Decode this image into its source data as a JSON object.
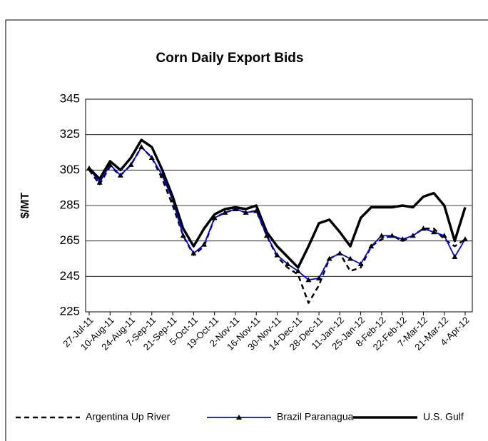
{
  "chart_data": {
    "type": "line",
    "title": "Corn Daily Export Bids",
    "y_label": "$/MT",
    "categories": [
      "27-Jul-11",
      null,
      "10-Aug-11",
      null,
      "24-Aug-11",
      null,
      "7-Sep-11",
      null,
      "21-Sep-11",
      null,
      "5-Oct-11",
      null,
      "19-Oct-11",
      null,
      "2-Nov-11",
      null,
      "16-Nov-11",
      null,
      "30-Nov-11",
      null,
      "14-Dec-11",
      null,
      "28-Dec-11",
      null,
      "11-Jan-12",
      null,
      "25-Jan-12",
      null,
      "8-Feb-12",
      null,
      "22-Feb-12",
      null,
      "7-Mar-12",
      null,
      "21-Mar-12",
      null,
      "4-Apr-12"
    ],
    "series": [
      {
        "name": "Argentina Up River",
        "color": "#000000",
        "line_style": "dashed",
        "values": [
          305,
          297,
          307,
          302,
          308,
          318,
          312,
          300,
          285,
          268,
          257,
          262,
          278,
          281,
          283,
          281,
          282,
          268,
          256,
          250,
          246,
          230,
          240,
          255,
          258,
          248,
          250,
          262,
          266,
          268,
          265,
          268,
          272,
          272,
          266,
          262,
          266
        ]
      },
      {
        "name": "Brazil Paranagua",
        "color": "#0000ff",
        "line_style": "solid",
        "marker": "triangle",
        "values": [
          306,
          298,
          308,
          302,
          308,
          318,
          312,
          302,
          288,
          268,
          258,
          263,
          278,
          281,
          283,
          281,
          282,
          268,
          257,
          252,
          248,
          243,
          244,
          255,
          258,
          255,
          252,
          262,
          268,
          268,
          266,
          268,
          272,
          270,
          268,
          256,
          266
        ]
      },
      {
        "name": "U.S. Gulf",
        "color": "#000000",
        "line_style": "thick",
        "values": [
          306,
          300,
          310,
          305,
          312,
          322,
          318,
          305,
          290,
          272,
          262,
          272,
          280,
          283,
          284,
          283,
          285,
          270,
          262,
          256,
          250,
          262,
          275,
          277,
          270,
          262,
          278,
          284,
          284,
          284,
          285,
          284,
          290,
          292,
          285,
          265,
          284
        ]
      }
    ],
    "ylim": [
      225,
      345
    ],
    "yticks": [
      225,
      245,
      265,
      285,
      305,
      325,
      345
    ],
    "grid": true,
    "legend": "bottom"
  }
}
